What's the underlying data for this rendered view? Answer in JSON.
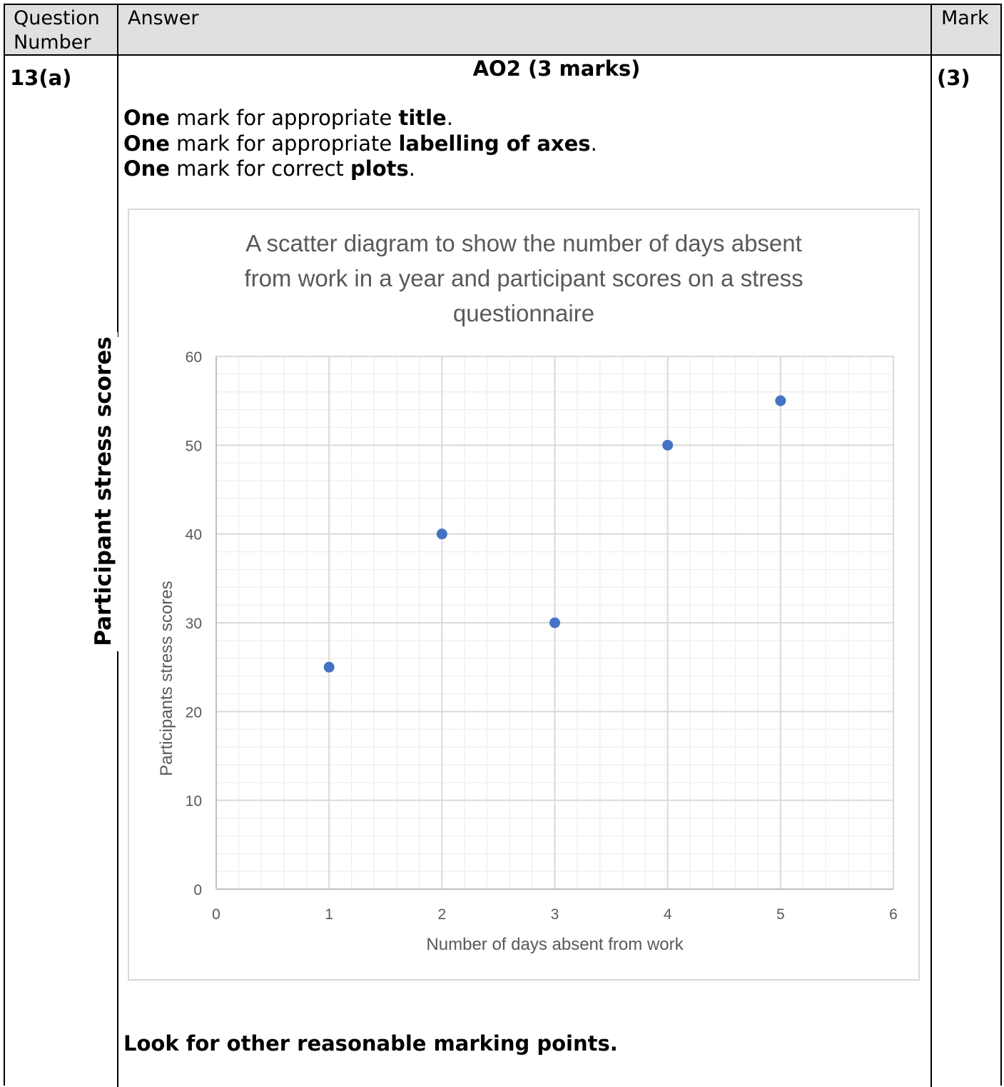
{
  "header": {
    "question_number_line1": "Question",
    "question_number_line2": "Number",
    "answer": "Answer",
    "mark": "Mark"
  },
  "row": {
    "question_number": "13(a)",
    "mark": "(3)",
    "ao_heading": "AO2 (3 marks)",
    "criteria": [
      {
        "lead": "One",
        "mid": " mark for appropriate ",
        "key": "title",
        "end": "."
      },
      {
        "lead": "One",
        "mid": " mark for appropriate ",
        "key": "labelling of axes",
        "end": "."
      },
      {
        "lead": "One",
        "mid": " mark for correct ",
        "key": "plots",
        "end": "."
      }
    ],
    "handwritten_label": "Participant stress scores",
    "footer": "Look for other reasonable marking points."
  },
  "chart_data": {
    "type": "scatter",
    "title_lines": [
      "A scatter diagram to show  the number of days absent",
      "from work in a year and participant scores on a stress",
      "questionnaire"
    ],
    "xlabel": "Number of days absent from work",
    "ylabel": "Participants stress scores",
    "xlim": [
      0,
      6
    ],
    "ylim": [
      0,
      60
    ],
    "x_ticks": [
      "0",
      "1",
      "2",
      "3",
      "4",
      "5",
      "6"
    ],
    "y_ticks": [
      "0",
      "10",
      "20",
      "30",
      "40",
      "50",
      "60"
    ],
    "x": [
      1,
      2,
      3,
      4,
      5
    ],
    "y": [
      25,
      40,
      30,
      50,
      55
    ],
    "point_color": "#4472c4",
    "major_grid_color": "#d9d9d9",
    "minor_grid_color": "#f0f0f0",
    "grid": true
  }
}
